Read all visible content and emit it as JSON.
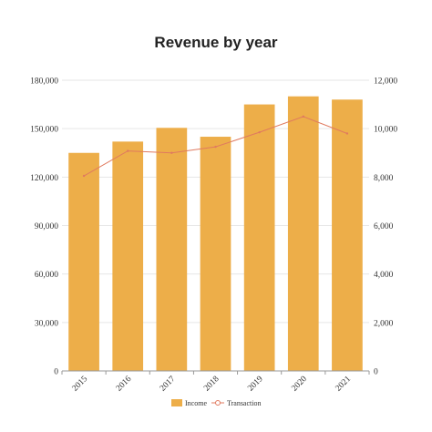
{
  "chart_data": {
    "type": "bar",
    "title": "Revenue by year",
    "categories": [
      "2015",
      "2016",
      "2017",
      "2018",
      "2019",
      "2020",
      "2021"
    ],
    "series": [
      {
        "name": "Income",
        "type": "bar",
        "axis": "left",
        "values": [
          135000,
          142000,
          150500,
          145000,
          165000,
          170000,
          168000
        ]
      },
      {
        "name": "Transaction",
        "type": "line",
        "axis": "right",
        "values": [
          8050,
          9080,
          9000,
          9250,
          9850,
          10500,
          9800
        ]
      }
    ],
    "yaxis_left": {
      "min": 0,
      "max": 180000,
      "step": 30000,
      "ticks": [
        "0",
        "30,000",
        "60,000",
        "90,000",
        "120,000",
        "150,000",
        "180,000"
      ]
    },
    "yaxis_right": {
      "min": 0,
      "max": 12000,
      "step": 2000,
      "ticks": [
        "0",
        "2,000",
        "4,000",
        "6,000",
        "8,000",
        "10,000",
        "12,000"
      ]
    },
    "grid": true,
    "legend": {
      "position": "bottom",
      "items": [
        "Income",
        "Transaction"
      ]
    },
    "colors": {
      "bar": "#EDAE49",
      "line": "#E07A5F",
      "grid": "#E6E6E6",
      "axis": "#999999"
    }
  }
}
